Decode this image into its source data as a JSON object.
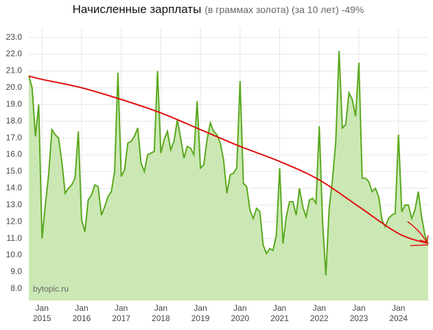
{
  "chart_data": {
    "type": "line",
    "title": "Начисленные зарплаты",
    "subtitle": "(в граммах золота) (за 10 лет) -49%",
    "watermark": "bytopic.ru",
    "categories": [
      null,
      null,
      null,
      null,
      "Jan 2015",
      null,
      null,
      null,
      null,
      null,
      null,
      null,
      null,
      null,
      null,
      null,
      "Jan 2016",
      null,
      null,
      null,
      null,
      null,
      null,
      null,
      null,
      null,
      null,
      null,
      "Jan 2017",
      null,
      null,
      null,
      null,
      null,
      null,
      null,
      null,
      null,
      null,
      null,
      "Jan 2018",
      null,
      null,
      null,
      null,
      null,
      null,
      null,
      null,
      null,
      null,
      null,
      "Jan 2019",
      null,
      null,
      null,
      null,
      null,
      null,
      null,
      null,
      null,
      null,
      null,
      "Jan 2020",
      null,
      null,
      null,
      null,
      null,
      null,
      null,
      null,
      null,
      null,
      null,
      "Jan 2021",
      null,
      null,
      null,
      null,
      null,
      null,
      null,
      null,
      null,
      null,
      null,
      "Jan 2022",
      null,
      null,
      null,
      null,
      null,
      null,
      null,
      null,
      null,
      null,
      null,
      "Jan 2023",
      null,
      null,
      null,
      null,
      null,
      null,
      null,
      null,
      null,
      null,
      null,
      "Jan 2024",
      null,
      null,
      null,
      null,
      null,
      null,
      null,
      null,
      null
    ],
    "series": [
      {
        "color": "#5aa81e",
        "fill": "#cbe8b4",
        "values": [
          20.7,
          20.0,
          17.1,
          19.0,
          11.0,
          13.0,
          14.8,
          17.5,
          17.2,
          17.0,
          15.6,
          13.7,
          14.0,
          14.2,
          14.6,
          17.4,
          12.1,
          11.4,
          13.3,
          13.6,
          14.2,
          14.1,
          12.4,
          12.9,
          13.5,
          13.8,
          15.0,
          20.9,
          14.7,
          15.1,
          16.7,
          16.8,
          17.1,
          17.6,
          15.5,
          15.0,
          16.0,
          16.1,
          16.2,
          21.0,
          16.1,
          16.9,
          17.4,
          16.3,
          16.8,
          18.1,
          17.0,
          15.8,
          16.5,
          16.4,
          16.0,
          19.2,
          15.2,
          15.4,
          16.9,
          17.9,
          17.4,
          17.2,
          16.7,
          15.7,
          13.7,
          14.8,
          14.9,
          15.2,
          20.4,
          14.3,
          14.1,
          12.7,
          12.2,
          12.8,
          12.6,
          10.6,
          10.1,
          10.4,
          10.3,
          11.2,
          15.2,
          10.7,
          12.3,
          13.2,
          13.2,
          12.4,
          14.0,
          12.9,
          12.3,
          13.3,
          13.4,
          13.1,
          17.7,
          12.0,
          8.8,
          12.8,
          14.5,
          16.8,
          22.2,
          17.6,
          17.8,
          19.7,
          19.3,
          18.3,
          21.5,
          14.6,
          14.6,
          14.4,
          13.8,
          14.0,
          13.5,
          12.1,
          11.7,
          12.2,
          12.4,
          12.5,
          17.2,
          12.6,
          13.0,
          13.0,
          12.2,
          12.7,
          13.8,
          12.3,
          11.2,
          10.7
        ]
      }
    ],
    "trend": {
      "color": "#e01010",
      "x": [
        0,
        4,
        16,
        28,
        40,
        52,
        64,
        76,
        88,
        100,
        112,
        121
      ],
      "values": [
        20.7,
        20.5,
        20.0,
        19.3,
        18.5,
        17.5,
        16.5,
        15.6,
        14.5,
        12.9,
        11.3,
        10.7
      ]
    },
    "ylim": [
      7.3,
      23.6
    ],
    "yticks": [
      {
        "value": 8,
        "label": "8.0"
      },
      {
        "value": 9,
        "label": "9.0"
      },
      {
        "value": 10,
        "label": "10.0"
      },
      {
        "value": 11,
        "label": "11.0"
      },
      {
        "value": 12,
        "label": "12.0"
      },
      {
        "value": 13,
        "label": "13.0"
      },
      {
        "value": 14,
        "label": "14.0"
      },
      {
        "value": 15,
        "label": "15.0"
      },
      {
        "value": 16,
        "label": "16.0"
      },
      {
        "value": 17,
        "label": "17.0"
      },
      {
        "value": 18,
        "label": "18.0"
      },
      {
        "value": 19,
        "label": "19.0"
      },
      {
        "value": 20,
        "label": "20.0"
      },
      {
        "value": 21,
        "label": "21.0"
      },
      {
        "value": 22,
        "label": "22.0"
      },
      {
        "value": 23,
        "label": "23.0"
      }
    ],
    "grid": true
  }
}
